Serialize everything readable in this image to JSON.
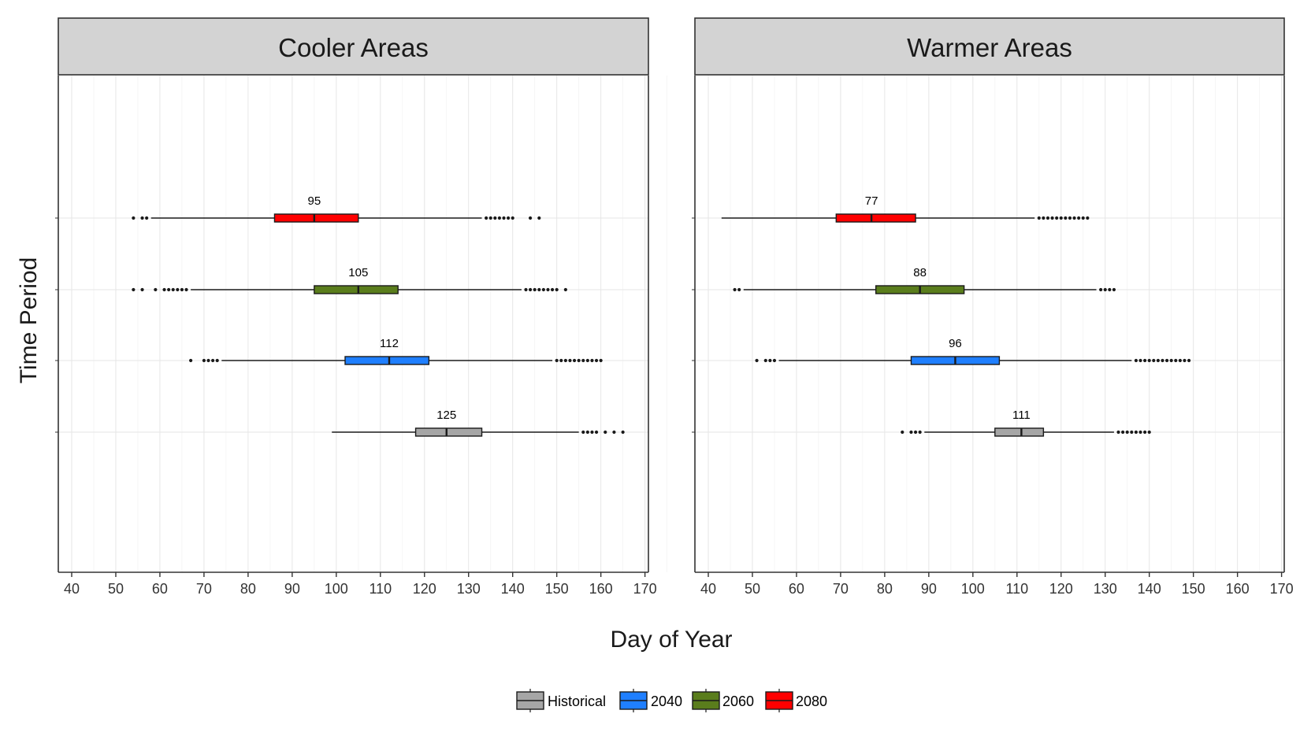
{
  "chart_data": {
    "type": "boxplot",
    "xlabel": "Day of Year",
    "ylabel": "Time Period",
    "xlim": [
      37,
      172
    ],
    "x_ticks": [
      40,
      50,
      60,
      70,
      80,
      90,
      100,
      110,
      120,
      130,
      140,
      150,
      160,
      170
    ],
    "grid": true,
    "legend_position": "bottom",
    "series": [
      {
        "name": "Historical",
        "color": "#a6a6a6"
      },
      {
        "name": "2040",
        "color": "#1f7fff"
      },
      {
        "name": "2060",
        "color": "#5a7d1c"
      },
      {
        "name": "2080",
        "color": "#ff0000"
      }
    ],
    "panels": [
      {
        "title": "Cooler Areas",
        "boxes": [
          {
            "series": "Historical",
            "label": "125",
            "whisker_low": 99,
            "q1": 118,
            "median": 125,
            "q3": 133,
            "whisker_high": 155,
            "outliers": [
              156,
              157,
              158,
              159,
              161,
              163,
              165
            ]
          },
          {
            "series": "2040",
            "label": "112",
            "whisker_low": 74,
            "q1": 102,
            "median": 112,
            "q3": 121,
            "whisker_high": 149,
            "outliers": [
              67,
              70,
              71,
              72,
              73,
              150,
              151,
              152,
              153,
              154,
              155,
              156,
              157,
              158,
              159,
              160
            ]
          },
          {
            "series": "2060",
            "label": "105",
            "whisker_low": 67,
            "q1": 95,
            "median": 105,
            "q3": 114,
            "whisker_high": 142,
            "outliers": [
              54,
              56,
              59,
              61,
              62,
              63,
              64,
              65,
              66,
              143,
              144,
              145,
              146,
              147,
              148,
              149,
              150,
              152
            ]
          },
          {
            "series": "2080",
            "label": "95",
            "whisker_low": 58,
            "q1": 86,
            "median": 95,
            "q3": 105,
            "whisker_high": 133,
            "outliers": [
              54,
              56,
              57,
              134,
              135,
              136,
              137,
              138,
              139,
              140,
              144,
              146
            ]
          }
        ]
      },
      {
        "title": "Warmer Areas",
        "boxes": [
          {
            "series": "Historical",
            "label": "111",
            "whisker_low": 89,
            "q1": 105,
            "median": 111,
            "q3": 116,
            "whisker_high": 132,
            "outliers": [
              84,
              86,
              87,
              88,
              133,
              134,
              135,
              136,
              137,
              138,
              139,
              140
            ]
          },
          {
            "series": "2040",
            "label": "96",
            "whisker_low": 56,
            "q1": 86,
            "median": 96,
            "q3": 106,
            "whisker_high": 136,
            "outliers": [
              51,
              53,
              54,
              55,
              137,
              138,
              139,
              140,
              141,
              142,
              143,
              144,
              145,
              146,
              147,
              148,
              149
            ]
          },
          {
            "series": "2060",
            "label": "88",
            "whisker_low": 48,
            "q1": 78,
            "median": 88,
            "q3": 98,
            "whisker_high": 128,
            "outliers": [
              46,
              47,
              129,
              130,
              131,
              132
            ]
          },
          {
            "series": "2080",
            "label": "77",
            "whisker_low": 43,
            "q1": 69,
            "median": 77,
            "q3": 87,
            "whisker_high": 114,
            "outliers": [
              115,
              116,
              117,
              118,
              119,
              120,
              121,
              122,
              123,
              124,
              125,
              126
            ]
          }
        ]
      }
    ]
  }
}
